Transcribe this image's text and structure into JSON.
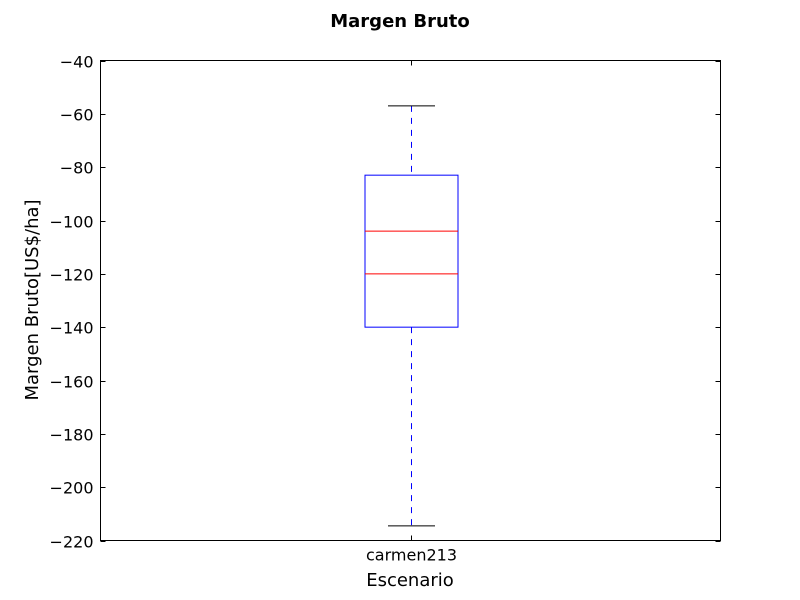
{
  "chart_data": {
    "type": "box",
    "title": "Margen Bruto",
    "xlabel": "Escenario",
    "ylabel": "Margen Bruto[US$/ha]",
    "categories": [
      "carmen213"
    ],
    "ylim": [
      -220,
      -40
    ],
    "yticks": [
      -40,
      -60,
      -80,
      -100,
      -120,
      -140,
      -160,
      -180,
      -200,
      -220
    ],
    "ytick_labels": [
      "−40",
      "−60",
      "−80",
      "−100",
      "−120",
      "−140",
      "−160",
      "−180",
      "−200",
      "−220"
    ],
    "boxes": [
      {
        "category": "carmen213",
        "whisker_high": -57,
        "q3": -83,
        "median": -104,
        "second_line": -120,
        "q1": -140,
        "whisker_low": -214.5
      }
    ],
    "colors": {
      "box": "#0000ff",
      "median": "#ff0000",
      "whisker": "#0000ff",
      "cap": "#000000"
    },
    "grid": false,
    "legend": "none"
  }
}
